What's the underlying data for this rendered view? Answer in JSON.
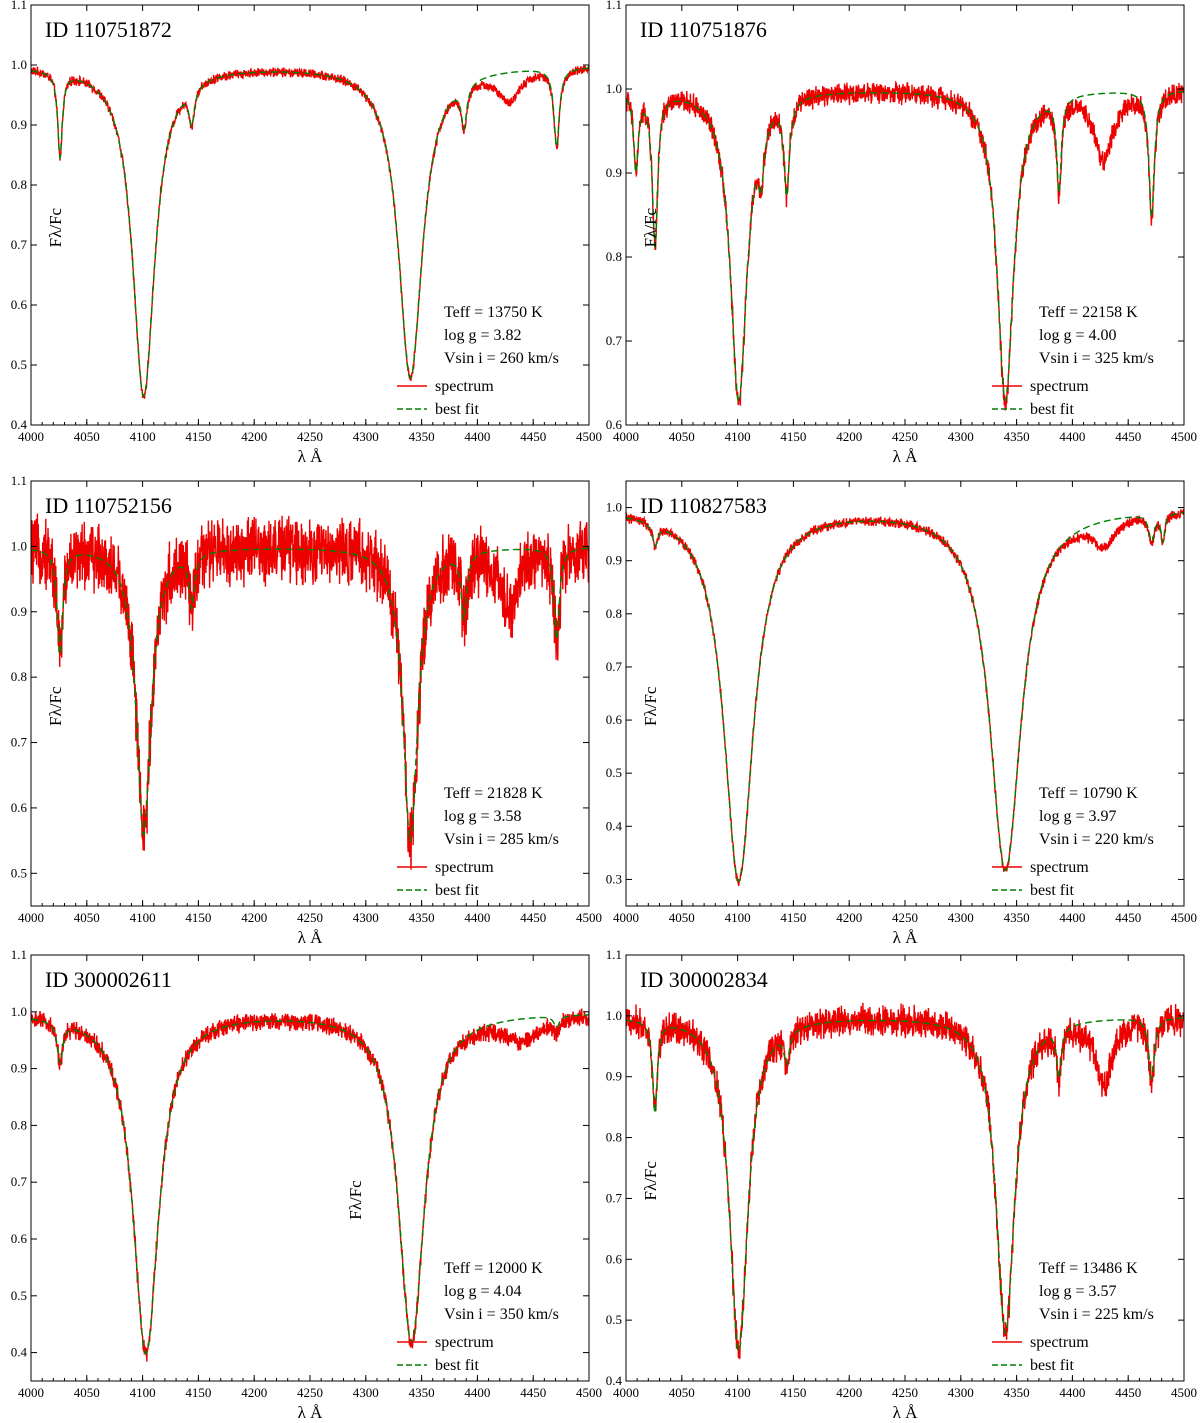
{
  "chart_data": [
    {
      "type": "line",
      "id_label": "ID 110751872",
      "xlabel": "λ Å",
      "ylabel": "Fλ/Fc",
      "xlim": [
        4000,
        4500
      ],
      "ylim": [
        0.4,
        1.1
      ],
      "xticks": [
        "4000",
        "4050",
        "4100",
        "4150",
        "4200",
        "4250",
        "4300",
        "4350",
        "4400",
        "4450",
        "4500"
      ],
      "yticks": [
        "0.4",
        "0.5",
        "0.6",
        "0.7",
        "0.8",
        "0.9",
        "1.0",
        "1.1"
      ],
      "params": [
        "Teff = 13750 K",
        "log g = 3.82",
        "Vsin i = 260 km/s"
      ],
      "legend": [
        {
          "label": "spectrum",
          "color": "#ee0000"
        },
        {
          "label": "best fit",
          "color": "#008000"
        }
      ],
      "lines": [
        {
          "center": 4026,
          "depth": 0.14,
          "width": 2.5
        },
        {
          "center": 4101,
          "depth": 0.55,
          "width": 12
        },
        {
          "center": 4144,
          "depth": 0.06,
          "width": 3
        },
        {
          "center": 4340,
          "depth": 0.52,
          "width": 13
        },
        {
          "center": 4388,
          "depth": 0.07,
          "width": 3
        },
        {
          "center": 4471,
          "depth": 0.13,
          "width": 3
        }
      ],
      "spectrum_only": [
        {
          "center": 4428,
          "depth": 0.05,
          "width": 12
        }
      ],
      "noise": 0.006
    },
    {
      "type": "line",
      "id_label": "ID 110751876",
      "xlabel": "λ Å",
      "ylabel": "Fλ/Fc",
      "xlim": [
        4000,
        4500
      ],
      "ylim": [
        0.6,
        1.1
      ],
      "xticks": [
        "4000",
        "4050",
        "4100",
        "4150",
        "4200",
        "4250",
        "4300",
        "4350",
        "4400",
        "4450",
        "4500"
      ],
      "yticks": [
        "0.6",
        "0.7",
        "0.8",
        "0.9",
        "1.0",
        "1.1"
      ],
      "params": [
        "Teff = 22158 K",
        "log g = 4.00",
        "Vsin i = 325 km/s"
      ],
      "legend": [
        {
          "label": "spectrum",
          "color": "#ee0000"
        },
        {
          "label": "best fit",
          "color": "#008000"
        }
      ],
      "lines": [
        {
          "center": 4009,
          "depth": 0.09,
          "width": 2.5
        },
        {
          "center": 4026,
          "depth": 0.18,
          "width": 3
        },
        {
          "center": 4101,
          "depth": 0.37,
          "width": 9
        },
        {
          "center": 4121,
          "depth": 0.06,
          "width": 3
        },
        {
          "center": 4144,
          "depth": 0.11,
          "width": 3
        },
        {
          "center": 4340,
          "depth": 0.37,
          "width": 9
        },
        {
          "center": 4388,
          "depth": 0.11,
          "width": 2.5
        },
        {
          "center": 4471,
          "depth": 0.15,
          "width": 3
        }
      ],
      "spectrum_only": [
        {
          "center": 4428,
          "depth": 0.08,
          "width": 10
        }
      ],
      "noise": 0.01
    },
    {
      "type": "line",
      "id_label": "ID 110752156",
      "xlabel": "λ Å",
      "ylabel": "Fλ/Fc",
      "xlim": [
        4000,
        4500
      ],
      "ylim": [
        0.45,
        1.1
      ],
      "xticks": [
        "4000",
        "4050",
        "4100",
        "4150",
        "4200",
        "4250",
        "4300",
        "4350",
        "4400",
        "4450",
        "4500"
      ],
      "yticks": [
        "0.5",
        "0.6",
        "0.7",
        "0.8",
        "0.9",
        "1.0",
        "1.1"
      ],
      "params": [
        "Teff = 21828 K",
        "log g = 3.58",
        "Vsin i = 285 km/s"
      ],
      "legend": [
        {
          "label": "spectrum",
          "color": "#ee0000"
        },
        {
          "label": "best fit",
          "color": "#008000"
        }
      ],
      "lines": [
        {
          "center": 4026,
          "depth": 0.16,
          "width": 3
        },
        {
          "center": 4101,
          "depth": 0.44,
          "width": 8
        },
        {
          "center": 4144,
          "depth": 0.08,
          "width": 3
        },
        {
          "center": 4340,
          "depth": 0.45,
          "width": 8
        },
        {
          "center": 4388,
          "depth": 0.1,
          "width": 3
        },
        {
          "center": 4471,
          "depth": 0.14,
          "width": 3
        }
      ],
      "spectrum_only": [
        {
          "center": 4428,
          "depth": 0.09,
          "width": 10
        }
      ],
      "noise": 0.04
    },
    {
      "type": "line",
      "id_label": "ID 110827583",
      "xlabel": "λ Å",
      "ylabel": "Fλ/Fc",
      "xlim": [
        4000,
        4500
      ],
      "ylim": [
        0.25,
        1.05
      ],
      "xticks": [
        "4000",
        "4050",
        "4100",
        "4150",
        "4200",
        "4250",
        "4300",
        "4350",
        "4400",
        "4450",
        "4500"
      ],
      "yticks": [
        "0.3",
        "0.4",
        "0.5",
        "0.6",
        "0.7",
        "0.8",
        "0.9",
        "1.0"
      ],
      "params": [
        "Teff = 10790 K",
        "log g = 3.97",
        "Vsin i = 220 km/s"
      ],
      "legend": [
        {
          "label": "spectrum",
          "color": "#ee0000"
        },
        {
          "label": "best fit",
          "color": "#008000"
        }
      ],
      "lines": [
        {
          "center": 4026,
          "depth": 0.04,
          "width": 3
        },
        {
          "center": 4101,
          "depth": 0.7,
          "width": 16
        },
        {
          "center": 4340,
          "depth": 0.68,
          "width": 17
        },
        {
          "center": 4471,
          "depth": 0.05,
          "width": 3
        },
        {
          "center": 4481,
          "depth": 0.05,
          "width": 2
        }
      ],
      "spectrum_only": [
        {
          "center": 4428,
          "depth": 0.05,
          "width": 12
        }
      ],
      "noise": 0.007
    },
    {
      "type": "line",
      "id_label": "ID 300002611",
      "xlabel": "λ Å",
      "ylabel": "Fλ/Fc",
      "xlim": [
        4000,
        4500
      ],
      "ylim": [
        0.35,
        1.1
      ],
      "xticks": [
        "4000",
        "4050",
        "4100",
        "4150",
        "4200",
        "4250",
        "4300",
        "4350",
        "4400",
        "4450",
        "4500"
      ],
      "yticks": [
        "0.4",
        "0.5",
        "0.6",
        "0.7",
        "0.8",
        "0.9",
        "1.0",
        "1.1"
      ],
      "params": [
        "Teff = 12000 K",
        "log g = 4.04",
        "Vsin i = 350 km/s"
      ],
      "legend": [
        {
          "label": "spectrum",
          "color": "#ee0000"
        },
        {
          "label": "best fit",
          "color": "#008000"
        }
      ],
      "lines": [
        {
          "center": 4026,
          "depth": 0.07,
          "width": 3
        },
        {
          "center": 4103,
          "depth": 0.6,
          "width": 14
        },
        {
          "center": 4341,
          "depth": 0.58,
          "width": 14
        },
        {
          "center": 4471,
          "depth": 0.02,
          "width": 3
        }
      ],
      "spectrum_only": [
        {
          "center": 4440,
          "depth": 0.04,
          "width": 20
        }
      ],
      "noise": 0.012
    },
    {
      "type": "line",
      "id_label": "ID 300002834",
      "xlabel": "λ Å",
      "ylabel": "Fλ/Fc",
      "xlim": [
        4000,
        4500
      ],
      "ylim": [
        0.4,
        1.1
      ],
      "xticks": [
        "4000",
        "4050",
        "4100",
        "4150",
        "4200",
        "4250",
        "4300",
        "4350",
        "4400",
        "4450",
        "4500"
      ],
      "yticks": [
        "0.4",
        "0.5",
        "0.6",
        "0.7",
        "0.8",
        "0.9",
        "1.0",
        "1.1"
      ],
      "params": [
        "Teff = 13486 K",
        "log g = 3.57",
        "Vsin i = 225 km/s"
      ],
      "legend": [
        {
          "label": "spectrum",
          "color": "#ee0000"
        },
        {
          "label": "best fit",
          "color": "#008000"
        }
      ],
      "lines": [
        {
          "center": 4026,
          "depth": 0.15,
          "width": 2.5
        },
        {
          "center": 4101,
          "depth": 0.55,
          "width": 10
        },
        {
          "center": 4144,
          "depth": 0.05,
          "width": 3
        },
        {
          "center": 4340,
          "depth": 0.52,
          "width": 10
        },
        {
          "center": 4388,
          "depth": 0.08,
          "width": 2.5
        },
        {
          "center": 4471,
          "depth": 0.1,
          "width": 3
        }
      ],
      "spectrum_only": [
        {
          "center": 4428,
          "depth": 0.11,
          "width": 9
        }
      ],
      "noise": 0.02
    }
  ]
}
